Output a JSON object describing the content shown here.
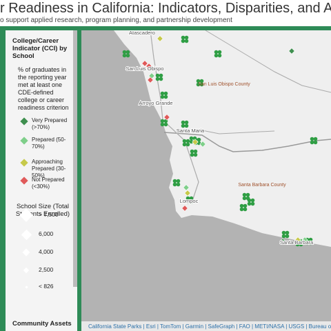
{
  "header": {
    "title": "r Readiness in California: Indicators, Disparities, and Assets",
    "subtitle": "o support applied research, program planning, and partnership development"
  },
  "legend": {
    "cci_title": "College/Career Indicator (CCI) by School",
    "cci_description": "% of graduates in the reporting year met at least one CDE-defined college or career readiness criterion",
    "cci_items": [
      {
        "label": "Very Prepared (>70%)",
        "color": "#3f8f4f"
      },
      {
        "label": "Prepared (50-70%)",
        "color": "#7fcf8a"
      },
      {
        "label": "Approaching Prepared (30-50%)",
        "color": "#c6c94a"
      },
      {
        "label": "Not Prepared (<30%)",
        "color": "#e05a5a"
      }
    ],
    "size_title": "School Size (Total Students Enrolled)",
    "size_items": [
      "> 7,500",
      "6,000",
      "4,000",
      "2,500",
      "< 826"
    ],
    "assets_title": "Community Assets"
  },
  "map": {
    "places": [
      "Atascadero",
      "San Luis Obispo",
      "Arroyo Grande",
      "Santa Maria",
      "Lompoc",
      "Santa Barbara"
    ],
    "counties": [
      "San Luis Obispo County",
      "Santa Barbara County"
    ],
    "attribution": "California State Parks | Esri | TomTom | Garmin | SafeGraph | FAO | METI/NASA | USGS | Bureau of Lan"
  }
}
